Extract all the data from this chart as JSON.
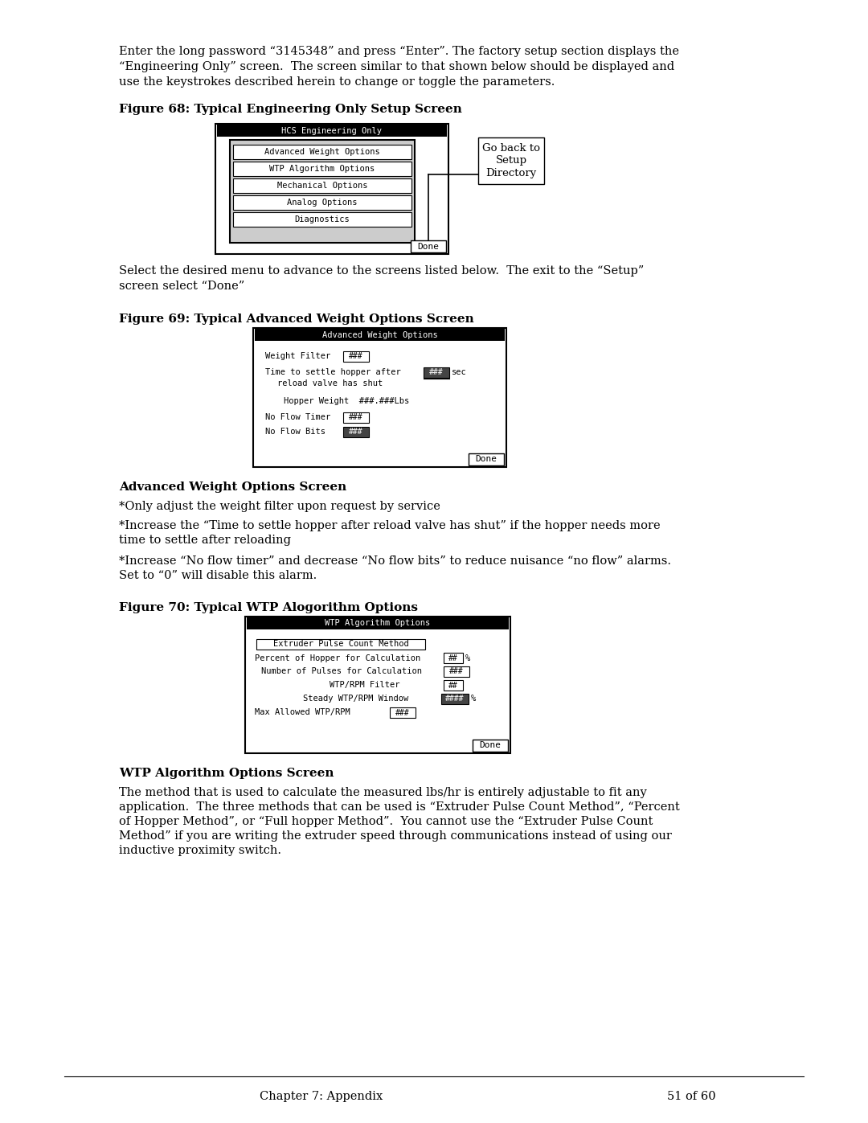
{
  "bg_color": "#ffffff",
  "para1_line1": "Enter the long password “3145348” and press “Enter”. The factory setup section displays the",
  "para1_line2": "“Engineering Only” screen.  The screen similar to that shown below should be displayed and",
  "para1_line3": "use the keystrokes described herein to change or toggle the parameters.",
  "fig68_label": "Figure 68: Typical Engineering Only Setup Screen",
  "fig69_label": "Figure 69: Typical Advanced Weight Options Screen",
  "fig70_label": "Figure 70: Typical WTP Alogorithm Options",
  "para2_line1": "Select the desired menu to advance to the screens listed below.  The exit to the “Setup”",
  "para2_line2": "screen select “Done”",
  "adv_weight_title": "Advanced Weight Options Screen",
  "adv_weight_b1": "*Only adjust the weight filter upon request by service",
  "adv_weight_b2a": "*Increase the “Time to settle hopper after reload valve has shut” if the hopper needs more",
  "adv_weight_b2b": "time to settle after reloading",
  "adv_weight_b3a": "*Increase “No flow timer” and decrease “No flow bits” to reduce nuisance “no flow” alarms.",
  "adv_weight_b3b": "Set to “0” will disable this alarm.",
  "wtp_title": "WTP Algorithm Options Screen",
  "wtp_p1": "The method that is used to calculate the measured lbs/hr is entirely adjustable to fit any",
  "wtp_p2": "application.  The three methods that can be used is “Extruder Pulse Count Method”, “Percent",
  "wtp_p3": "of Hopper Method”, or “Full hopper Method”.  You cannot use the “Extruder Pulse Count",
  "wtp_p4": "Method” if you are writing the extruder speed through communications instead of using our",
  "wtp_p5": "inductive proximity switch.",
  "footer_left": "Chapter 7: Appendix",
  "footer_right": "51 of 60",
  "hcs_menu": [
    "Advanced Weight Options",
    "WTP Algorithm Options",
    "Mechanical Options",
    "Analog Options",
    "Diagnostics"
  ]
}
